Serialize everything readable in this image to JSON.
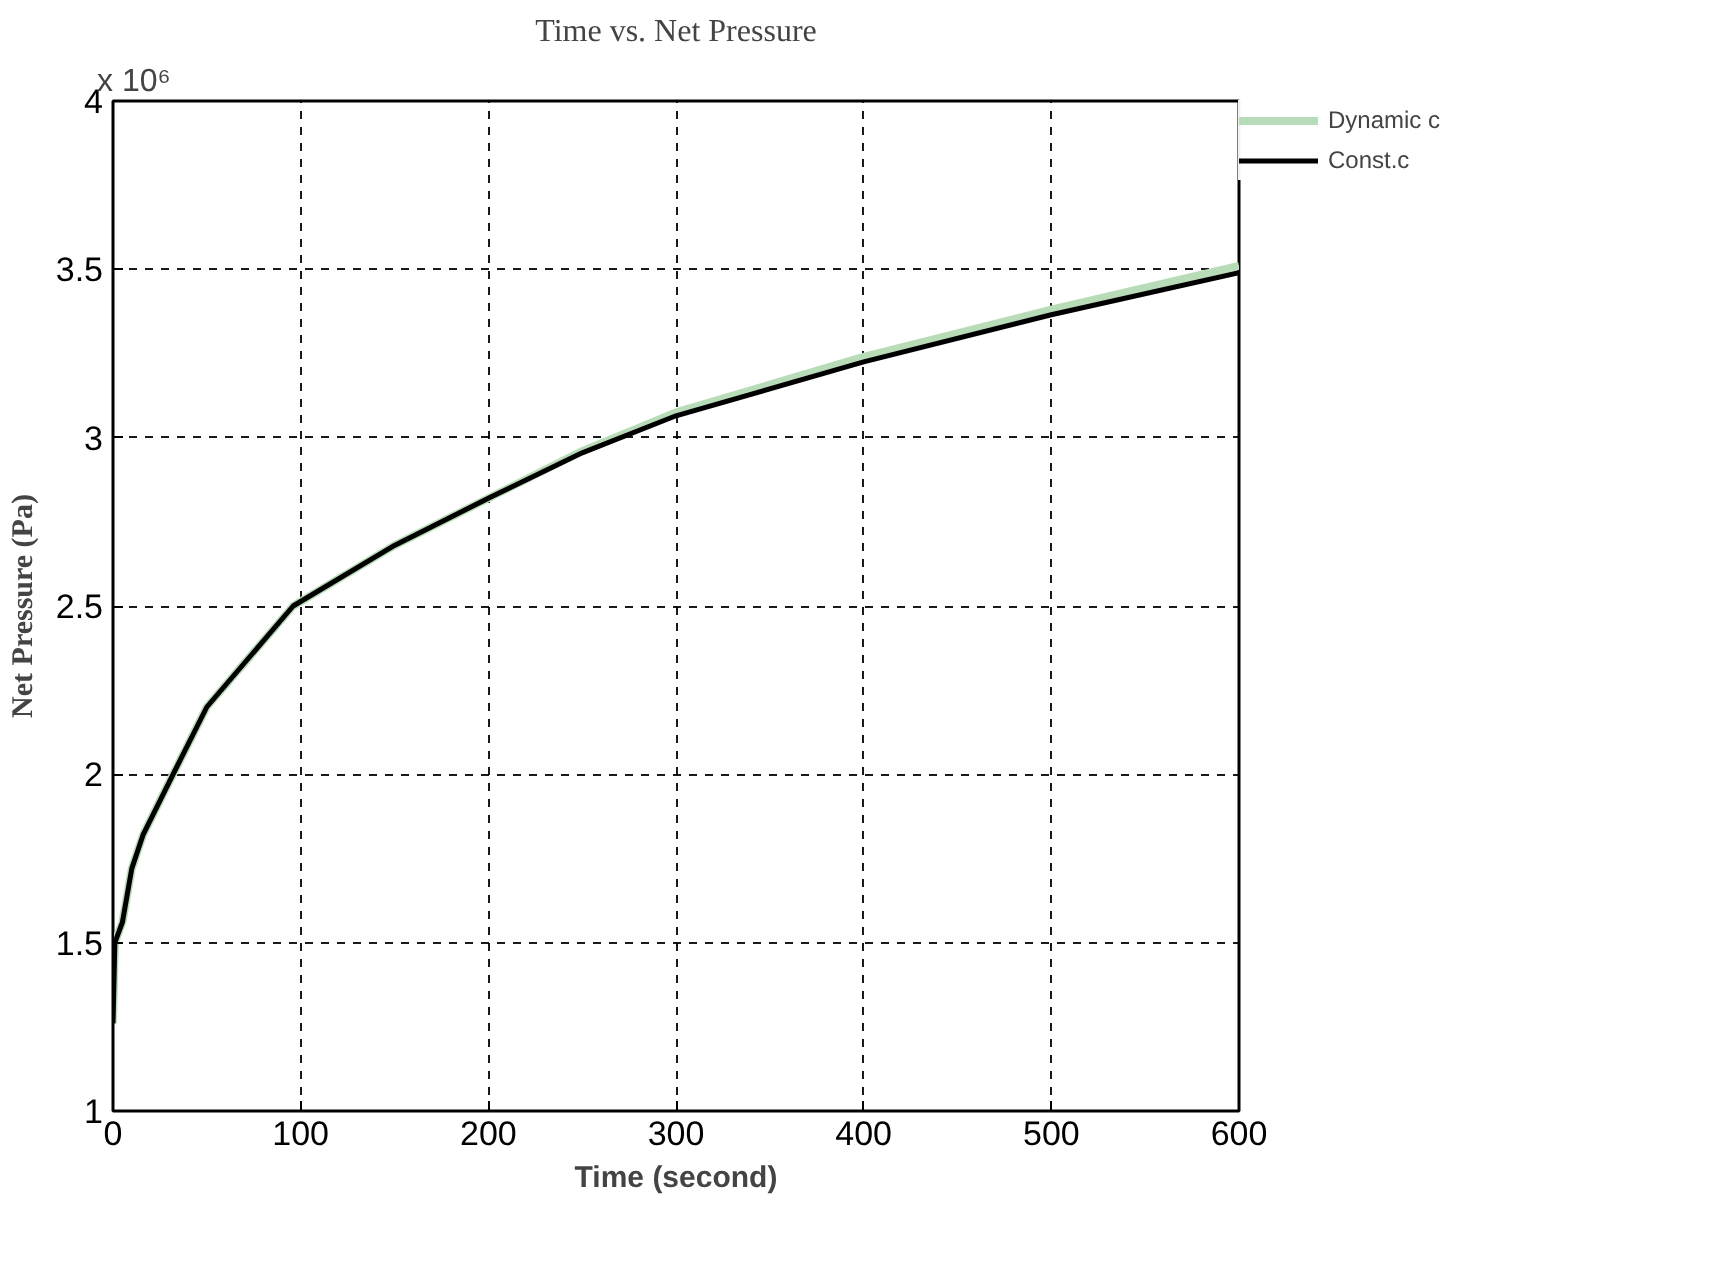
{
  "chart_data": {
    "type": "line",
    "title": "Time vs. Net Pressure",
    "xlabel": "Time (second)",
    "ylabel": "Net Pressure (Pa)",
    "annotations": [
      "x 10⁶"
    ],
    "xlim": [
      0,
      600
    ],
    "xticks": [
      0,
      100,
      200,
      300,
      400,
      500,
      600
    ],
    "ylim": [
      1,
      4
    ],
    "yticks": [
      1,
      1.5,
      2,
      2.5,
      3,
      3.5,
      4
    ],
    "grid": true,
    "legend": "top right",
    "marker": "none",
    "line_style": "solid",
    "series": [
      {
        "name": "Dynamic c",
        "color": "#b8dcb8",
        "x": [
          0,
          1,
          5,
          10,
          16,
          32,
          50,
          96,
          150,
          200,
          250,
          300,
          400,
          500,
          600
        ],
        "values": [
          1.26,
          1.5,
          1.56,
          1.72,
          1.82,
          2.0,
          2.2,
          2.5,
          2.68,
          2.82,
          2.96,
          3.075,
          3.24,
          3.38,
          3.51
        ]
      },
      {
        "name": "Const.c",
        "color": "#000000",
        "x": [
          0,
          1,
          5,
          10,
          16,
          32,
          50,
          96,
          150,
          200,
          250,
          300,
          400,
          500,
          600
        ],
        "values": [
          1.26,
          1.5,
          1.56,
          1.72,
          1.82,
          2.0,
          2.2,
          2.5,
          2.68,
          2.82,
          2.955,
          3.065,
          3.225,
          3.365,
          3.49
        ]
      }
    ]
  }
}
